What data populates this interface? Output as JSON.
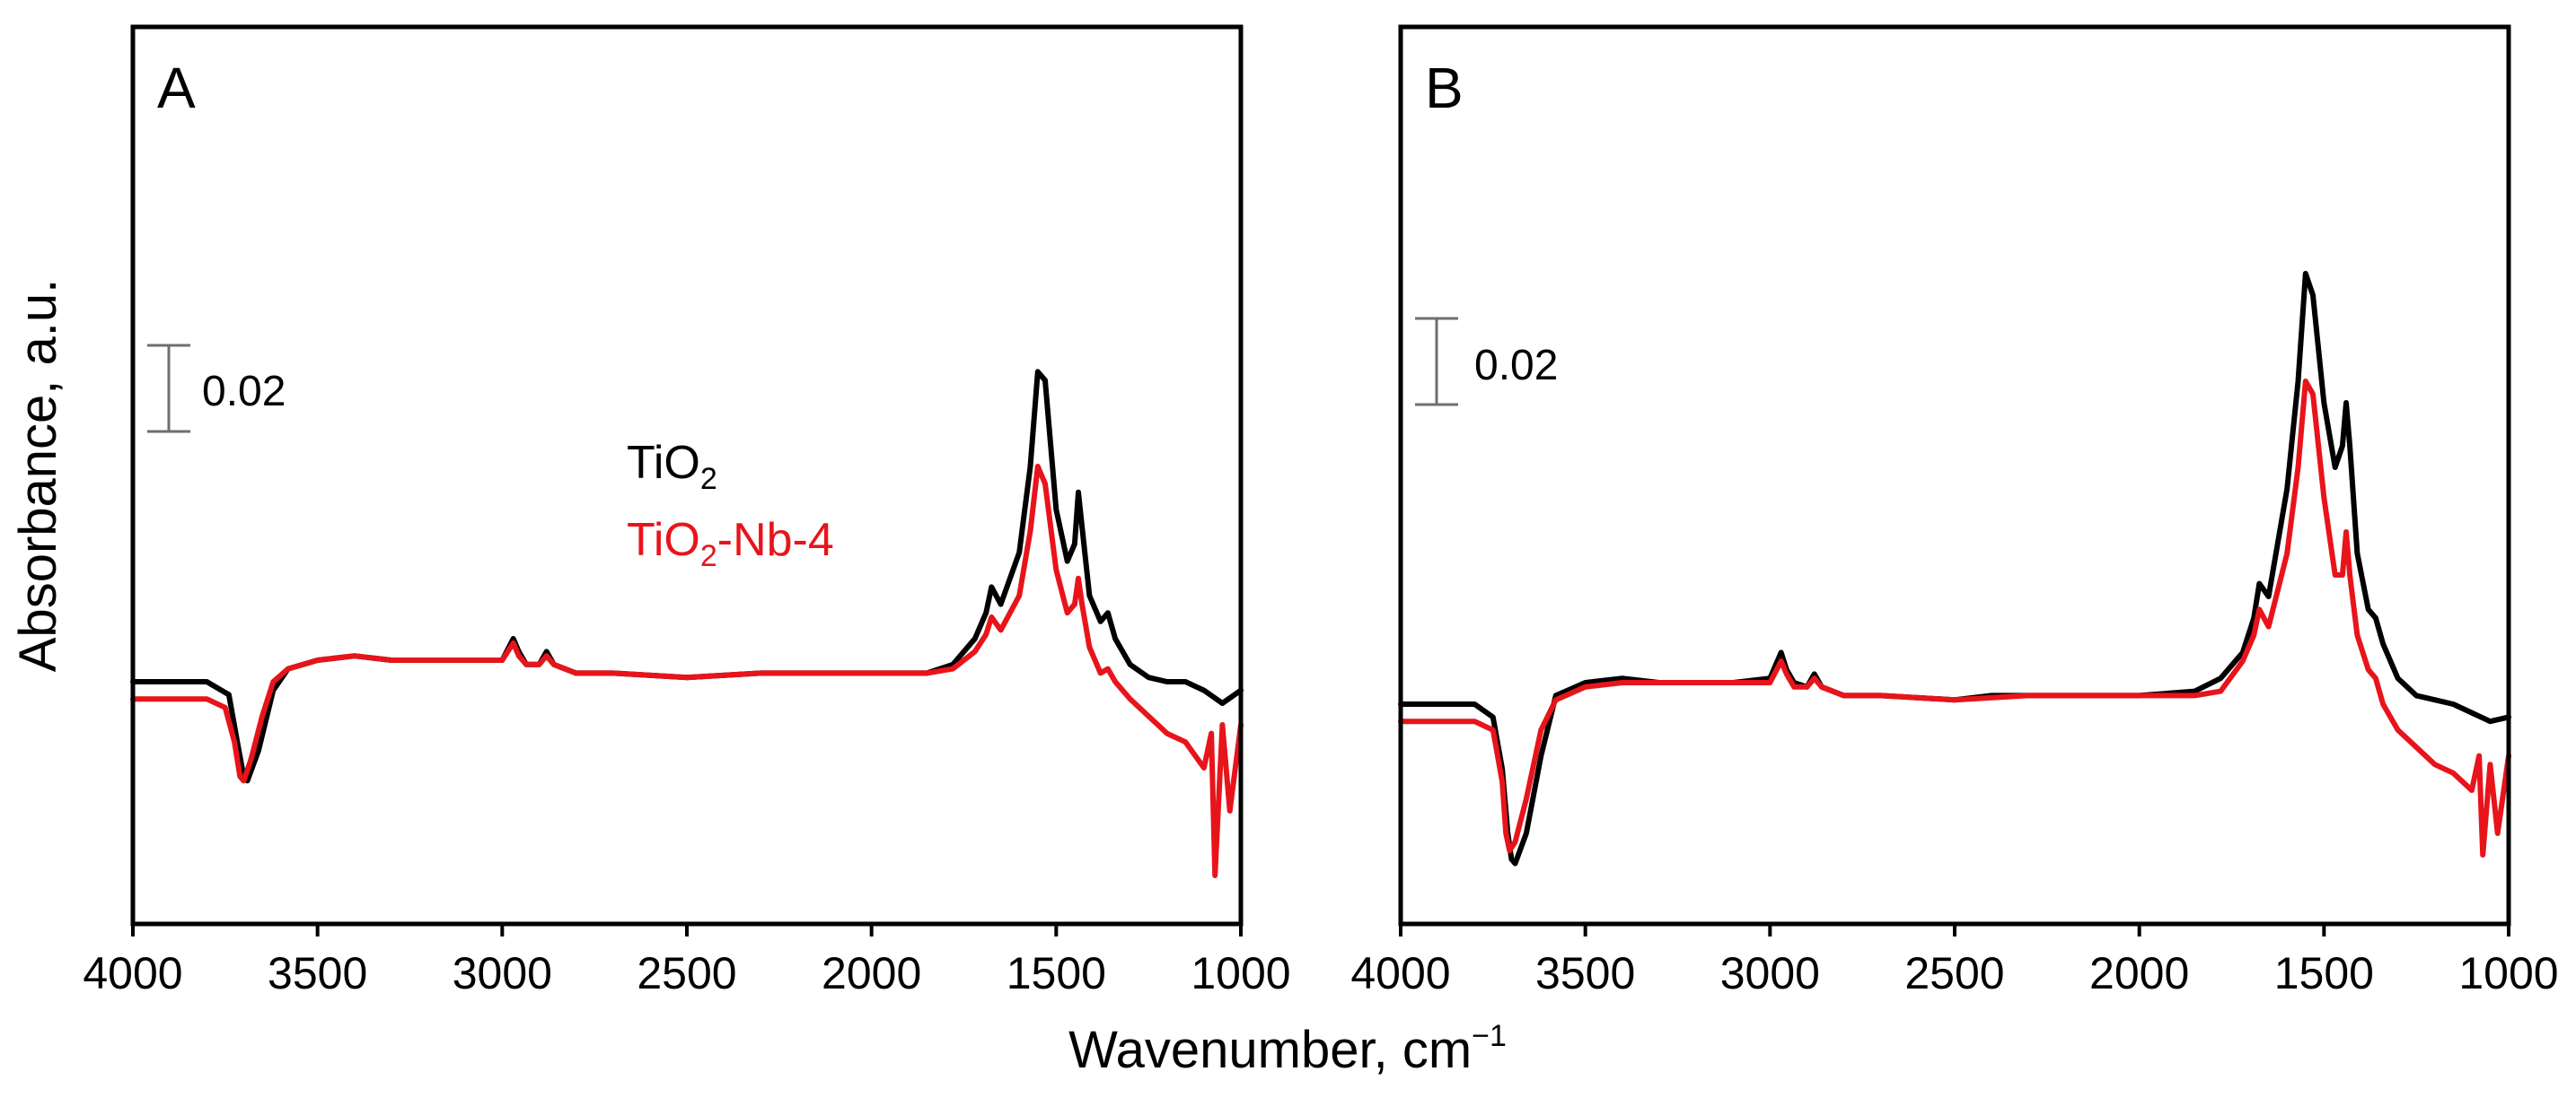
{
  "chart_data": {
    "type": "line",
    "ylabel": "Absorbance, a.u.",
    "xlabel": "Wavenumber, cm",
    "xlabel_unit_sup": "−1",
    "xlim": [
      4000,
      1000
    ],
    "ylim": [
      -0.06,
      0.08
    ],
    "xticks": [
      4000,
      3500,
      3000,
      2500,
      2000,
      1500,
      1000
    ],
    "colors": {
      "TiO2": "#000000",
      "TiO2-Nb-4": "#e8141b",
      "scale_bar": "#6e6e6e"
    },
    "legend": [
      {
        "base": "TiO",
        "sub": "2",
        "suffix": "",
        "color": "#000000"
      },
      {
        "base": "TiO",
        "sub": "2",
        "suffix": "-Nb-4",
        "color": "#e8141b"
      }
    ],
    "panels": [
      {
        "id": "A",
        "scale_bar": {
          "value": 0.02,
          "label": "0.02",
          "y_from": 0.03,
          "y_to": 0.05
        },
        "series": [
          {
            "name": "TiO2",
            "x": [
              4000,
              3800,
              3740,
              3715,
              3700,
              3690,
              3660,
              3620,
              3580,
              3500,
              3400,
              3300,
              3100,
              3000,
              2970,
              2955,
              2935,
              2900,
              2880,
              2860,
              2800,
              2700,
              2500,
              2300,
              2000,
              1850,
              1780,
              1720,
              1690,
              1675,
              1650,
              1600,
              1570,
              1550,
              1530,
              1500,
              1470,
              1450,
              1440,
              1430,
              1410,
              1380,
              1360,
              1340,
              1300,
              1250,
              1200,
              1150,
              1100,
              1050,
              1000
            ],
            "y": [
              0.0,
              0.0,
              -0.003,
              -0.015,
              -0.022,
              -0.023,
              -0.016,
              -0.002,
              0.003,
              0.005,
              0.006,
              0.005,
              0.005,
              0.005,
              0.01,
              0.007,
              0.004,
              0.004,
              0.007,
              0.004,
              0.002,
              0.002,
              0.001,
              0.002,
              0.002,
              0.002,
              0.004,
              0.01,
              0.016,
              0.022,
              0.018,
              0.03,
              0.05,
              0.072,
              0.07,
              0.04,
              0.028,
              0.032,
              0.044,
              0.036,
              0.02,
              0.014,
              0.016,
              0.01,
              0.004,
              0.001,
              0.0,
              0.0,
              -0.002,
              -0.005,
              -0.002
            ]
          },
          {
            "name": "TiO2-Nb-4",
            "x": [
              4000,
              3800,
              3750,
              3725,
              3710,
              3700,
              3680,
              3650,
              3620,
              3580,
              3500,
              3400,
              3300,
              3100,
              3000,
              2970,
              2955,
              2935,
              2900,
              2880,
              2860,
              2800,
              2700,
              2500,
              2300,
              2000,
              1850,
              1780,
              1720,
              1690,
              1675,
              1650,
              1600,
              1570,
              1550,
              1530,
              1500,
              1470,
              1450,
              1440,
              1430,
              1410,
              1380,
              1360,
              1340,
              1300,
              1250,
              1200,
              1150,
              1100,
              1080,
              1070,
              1050,
              1030,
              1000
            ],
            "y": [
              -0.004,
              -0.004,
              -0.006,
              -0.014,
              -0.022,
              -0.023,
              -0.018,
              -0.008,
              0.0,
              0.003,
              0.005,
              0.006,
              0.005,
              0.005,
              0.005,
              0.009,
              0.006,
              0.004,
              0.004,
              0.006,
              0.004,
              0.002,
              0.002,
              0.001,
              0.002,
              0.002,
              0.002,
              0.003,
              0.007,
              0.011,
              0.015,
              0.012,
              0.02,
              0.035,
              0.05,
              0.046,
              0.026,
              0.016,
              0.018,
              0.024,
              0.018,
              0.008,
              0.002,
              0.003,
              0.0,
              -0.004,
              -0.008,
              -0.012,
              -0.014,
              -0.02,
              -0.012,
              -0.045,
              -0.01,
              -0.03,
              -0.01
            ]
          }
        ]
      },
      {
        "id": "B",
        "scale_bar": {
          "value": 0.02,
          "label": "0.02",
          "y_from": 0.03,
          "y_to": 0.05
        },
        "series": [
          {
            "name": "TiO2",
            "x": [
              4000,
              3800,
              3750,
              3725,
              3710,
              3700,
              3690,
              3660,
              3620,
              3580,
              3500,
              3400,
              3300,
              3100,
              3000,
              2970,
              2955,
              2935,
              2900,
              2880,
              2860,
              2800,
              2700,
              2500,
              2400,
              2300,
              2000,
              1850,
              1780,
              1720,
              1690,
              1675,
              1650,
              1600,
              1570,
              1550,
              1530,
              1500,
              1470,
              1450,
              1440,
              1430,
              1410,
              1380,
              1360,
              1340,
              1300,
              1250,
              1200,
              1150,
              1100,
              1050,
              1000
            ],
            "y": [
              0.0,
              0.0,
              -0.003,
              -0.015,
              -0.03,
              -0.036,
              -0.037,
              -0.03,
              -0.012,
              0.002,
              0.005,
              0.006,
              0.005,
              0.005,
              0.006,
              0.012,
              0.008,
              0.005,
              0.004,
              0.007,
              0.004,
              0.002,
              0.002,
              0.001,
              0.002,
              0.002,
              0.002,
              0.003,
              0.006,
              0.012,
              0.02,
              0.028,
              0.025,
              0.05,
              0.075,
              0.1,
              0.095,
              0.07,
              0.055,
              0.06,
              0.07,
              0.06,
              0.035,
              0.022,
              0.02,
              0.014,
              0.006,
              0.002,
              0.001,
              0.0,
              -0.002,
              -0.004,
              -0.003
            ]
          },
          {
            "name": "TiO2-Nb-4",
            "x": [
              4000,
              3800,
              3750,
              3725,
              3715,
              3705,
              3690,
              3660,
              3620,
              3580,
              3500,
              3400,
              3300,
              3100,
              3000,
              2970,
              2955,
              2935,
              2900,
              2880,
              2860,
              2800,
              2700,
              2500,
              2300,
              2000,
              1850,
              1780,
              1720,
              1690,
              1675,
              1650,
              1600,
              1570,
              1550,
              1530,
              1500,
              1470,
              1450,
              1440,
              1430,
              1410,
              1380,
              1360,
              1340,
              1300,
              1250,
              1200,
              1150,
              1100,
              1080,
              1070,
              1050,
              1030,
              1000
            ],
            "y": [
              -0.004,
              -0.004,
              -0.006,
              -0.018,
              -0.03,
              -0.034,
              -0.032,
              -0.022,
              -0.006,
              0.001,
              0.004,
              0.005,
              0.005,
              0.005,
              0.005,
              0.01,
              0.007,
              0.004,
              0.004,
              0.006,
              0.004,
              0.002,
              0.002,
              0.001,
              0.002,
              0.002,
              0.002,
              0.003,
              0.01,
              0.016,
              0.022,
              0.018,
              0.035,
              0.055,
              0.075,
              0.072,
              0.048,
              0.03,
              0.03,
              0.04,
              0.03,
              0.016,
              0.008,
              0.006,
              0.0,
              -0.006,
              -0.01,
              -0.014,
              -0.016,
              -0.02,
              -0.012,
              -0.035,
              -0.014,
              -0.03,
              -0.012
            ]
          }
        ]
      }
    ]
  }
}
